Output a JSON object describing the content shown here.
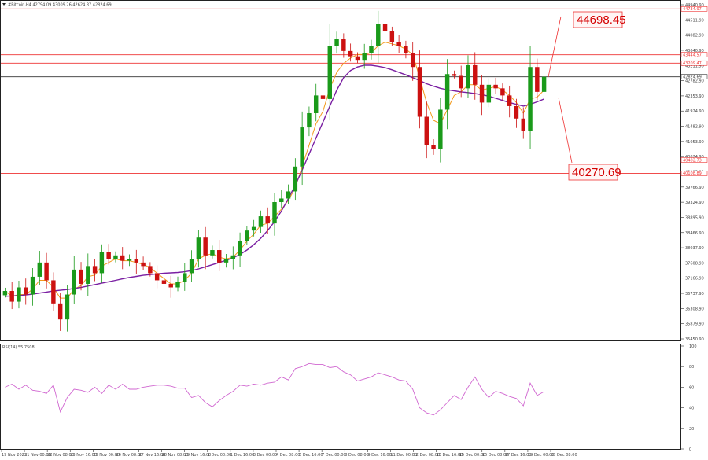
{
  "header": {
    "symbol_line": "#Bitcoin,H4  42794.09  43009.26  42624.37  42824.69",
    "rsi_label": "RSI(14) 55.7508"
  },
  "colors": {
    "bull": "#1a9a1a",
    "bear": "#cc1111",
    "ma_fast": "#f39a1c",
    "ma_slow": "#7a1fa2",
    "rsi": "#d066d0",
    "level": "#ee3333",
    "current": "#333333"
  },
  "chart_data": [
    {
      "type": "candlestick",
      "timeframe": "H4",
      "ylim": [
        35450.9,
        44940.9
      ],
      "y_ticks": [
        "44940.90",
        "44511.90",
        "44082.90",
        "43640.90",
        "43211.90",
        "42782.90",
        "42353.90",
        "41924.90",
        "41482.90",
        "41053.90",
        "40624.90",
        "40195.90",
        "39766.90",
        "39324.90",
        "38895.90",
        "38466.90",
        "38037.90",
        "37608.90",
        "37166.90",
        "36737.90",
        "36308.90",
        "35879.90",
        "35450.90"
      ],
      "x_ticks": [
        "19 Nov 2023",
        "21 Nov 00:00",
        "22 Nov 08:00",
        "23 Nov 16:00",
        "25 Nov 00:00",
        "26 Nov 08:00",
        "27 Nov 16:00",
        "28 Nov 08:00",
        "29 Nov 16:00",
        "1 Dec 00:00",
        "1 Dec 16:00",
        "3 Dec 00:00",
        "4 Dec 08:00",
        "5 Dec 16:00",
        "7 Dec 00:00",
        "8 Dec 08:00",
        "9 Dec 16:00",
        "11 Dec 00:00",
        "12 Dec 08:00",
        "13 Dec 16:00",
        "15 Dec 00:00",
        "16 Dec 08:00",
        "17 Dec 16:00",
        "19 Dec 00:00",
        "20 Dec 08:00"
      ],
      "close_path": [
        36800,
        36500,
        36900,
        36700,
        37200,
        37600,
        37100,
        36450,
        36000,
        36700,
        37400,
        37000,
        37500,
        37300,
        37900,
        37700,
        37800,
        37650,
        37700,
        37600,
        37500,
        37300,
        37100,
        37000,
        36900,
        37050,
        37300,
        37700,
        38300,
        37800,
        37950,
        37600,
        37700,
        37800,
        38200,
        38500,
        38600,
        38900,
        38700,
        39300,
        39400,
        39600,
        40300,
        41400,
        41800,
        42300,
        42200,
        43700,
        43900,
        43550,
        43400,
        43300,
        43500,
        43700,
        44300,
        44100,
        43800,
        43700,
        43500,
        43100,
        41700,
        40900,
        40800,
        41900,
        42900,
        42850,
        42500,
        43150,
        42600,
        42100,
        42600,
        42500,
        42300,
        42000,
        41650,
        41300,
        43100,
        42400,
        42824.69
      ],
      "series": [
        {
          "name": "MA fast",
          "values": [
            36800,
            36650,
            36700,
            36700,
            36850,
            37100,
            37100,
            36900,
            36600,
            36600,
            36850,
            36950,
            37200,
            37250,
            37500,
            37600,
            37700,
            37650,
            37650,
            37600,
            37550,
            37450,
            37300,
            37150,
            37000,
            37000,
            37100,
            37300,
            37700,
            37800,
            37850,
            37750,
            37700,
            37750,
            37950,
            38200,
            38400,
            38650,
            38700,
            38900,
            39100,
            39350,
            39700,
            40300,
            40900,
            41500,
            41850,
            42500,
            42950,
            43200,
            43350,
            43450,
            43450,
            43500,
            43700,
            43800,
            43750,
            43700,
            43600,
            43450,
            42800,
            42100,
            41600,
            41500,
            41900,
            42300,
            42400,
            42600,
            42600,
            42450,
            42500,
            42550,
            42450,
            42300,
            42100,
            41800,
            42200,
            42250,
            42450
          ]
        },
        {
          "name": "MA slow",
          "values": [
            36650,
            36660,
            36670,
            36690,
            36710,
            36740,
            36770,
            36800,
            36820,
            36840,
            36870,
            36900,
            36940,
            36980,
            37020,
            37060,
            37100,
            37140,
            37180,
            37210,
            37240,
            37260,
            37280,
            37300,
            37310,
            37320,
            37340,
            37370,
            37420,
            37480,
            37540,
            37600,
            37660,
            37730,
            37830,
            37950,
            38100,
            38280,
            38500,
            38750,
            39050,
            39400,
            39780,
            40200,
            40650,
            41100,
            41550,
            42000,
            42450,
            42800,
            43000,
            43100,
            43150,
            43150,
            43120,
            43080,
            43020,
            42950,
            42880,
            42800,
            42720,
            42630,
            42560,
            42500,
            42460,
            42430,
            42400,
            42380,
            42350,
            42320,
            42280,
            42220,
            42160,
            42100,
            42050,
            42000,
            42050,
            42120,
            42200
          ]
        }
      ],
      "levels": [
        {
          "price": 44734.97,
          "label": "44734.97",
          "annotation": "44698.45"
        },
        {
          "price": 43444.57,
          "label": "43444.57"
        },
        {
          "price": 43209.47,
          "label": "43209.47"
        },
        {
          "price": 40482.73,
          "label": "40482.73"
        },
        {
          "price": 40108.89,
          "label": "40108.89",
          "annotation": "40270.69"
        }
      ],
      "current_price": {
        "price": 42824.69,
        "label": "42824.69"
      }
    },
    {
      "type": "line",
      "title": "RSI(14) 55.7508",
      "ylim": [
        0,
        100
      ],
      "y_ticks": [
        "100",
        "80",
        "60",
        "40",
        "20",
        "0"
      ],
      "levels": [
        30,
        70
      ],
      "values": [
        60,
        63,
        58,
        62,
        57,
        56,
        54,
        62,
        36,
        50,
        58,
        57,
        55,
        60,
        54,
        62,
        58,
        63,
        58,
        58,
        60,
        61,
        62,
        62,
        61,
        59,
        59,
        50,
        52,
        45,
        41,
        47,
        52,
        56,
        62,
        61,
        63,
        62,
        64,
        65,
        70,
        67,
        78,
        80,
        83,
        82,
        82,
        79,
        80,
        75,
        72,
        66,
        68,
        70,
        74,
        72,
        70,
        67,
        66,
        58,
        40,
        35,
        33,
        38,
        45,
        52,
        48,
        60,
        70,
        58,
        50,
        56,
        54,
        51,
        49,
        42,
        64,
        52,
        55.75
      ]
    }
  ]
}
